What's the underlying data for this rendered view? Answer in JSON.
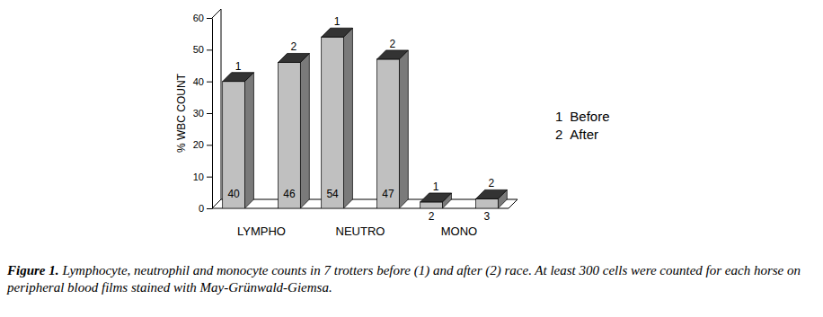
{
  "chart_data": {
    "type": "bar",
    "categories": [
      "LYMPHO",
      "NEUTRO",
      "MONO"
    ],
    "series": [
      {
        "name": "Before",
        "label": "1",
        "color": "#c0c0c0",
        "values": [
          40,
          54,
          2
        ]
      },
      {
        "name": "After",
        "label": "2",
        "color": "#c0c0c0",
        "values": [
          46,
          47,
          3
        ]
      }
    ],
    "ylabel": "% WBC COUNT",
    "ylim": [
      0,
      60
    ],
    "yticks": [
      0,
      10,
      20,
      30,
      40,
      50,
      60
    ],
    "data_labels": true,
    "legend": "right",
    "caption": {
      "label": "Figure 1.",
      "text": "Lymphocyte, neutrophil and monocyte counts in 7 trotters before (1) and after (2) race. At least 300 cells were counted for each horse on peripheral blood films stained with May-Grünwald-Giemsa."
    }
  }
}
